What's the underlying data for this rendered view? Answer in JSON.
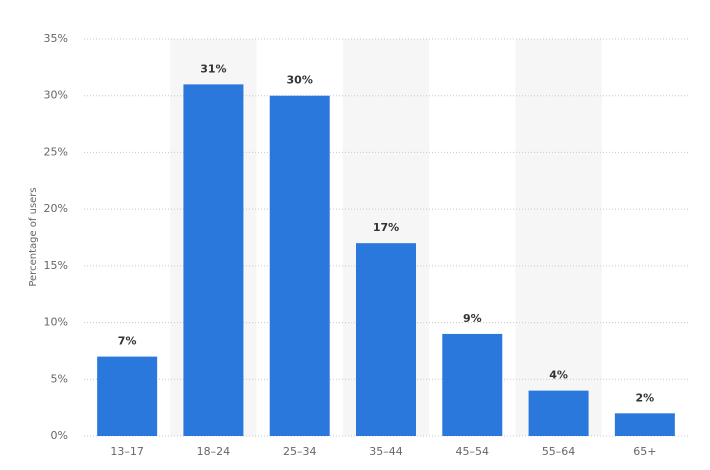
{
  "chart_data": {
    "type": "bar",
    "y_label": "Percentage of users",
    "categories": [
      "13–17",
      "18–24",
      "25–34",
      "35–44",
      "45–54",
      "55–64",
      "65+"
    ],
    "values": [
      7,
      31,
      30,
      17,
      9,
      4,
      2
    ],
    "value_labels": [
      "7%",
      "31%",
      "30%",
      "17%",
      "9%",
      "4%",
      "2%"
    ],
    "color": "#2b78dc",
    "ylim": [
      0,
      35
    ],
    "yticks": [
      {
        "value": 0,
        "label": "0%"
      },
      {
        "value": 5,
        "label": "5%"
      },
      {
        "value": 10,
        "label": "10%"
      },
      {
        "value": 15,
        "label": "15%"
      },
      {
        "value": 20,
        "label": "20%"
      },
      {
        "value": 25,
        "label": "25%"
      },
      {
        "value": 30,
        "label": "30%"
      },
      {
        "value": 35,
        "label": "35%"
      }
    ],
    "grid": true
  }
}
